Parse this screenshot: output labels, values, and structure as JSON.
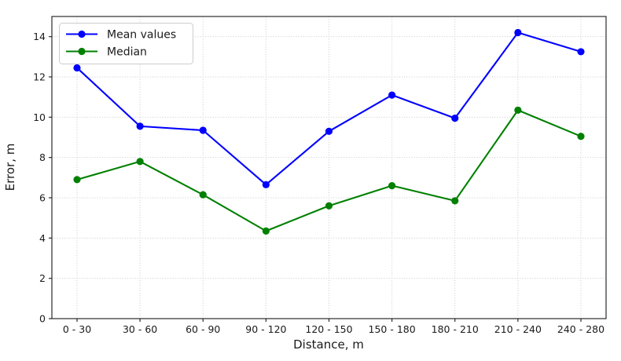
{
  "chart_data": {
    "type": "line",
    "title": "",
    "xlabel": "Distance, m",
    "ylabel": "Error, m",
    "categories": [
      "0 - 30",
      "30 - 60",
      "60 - 90",
      "90 - 120",
      "120 - 150",
      "150 - 180",
      "180 - 210",
      "210 - 240",
      "240 - 280"
    ],
    "series": [
      {
        "name": "Median",
        "color": "#008000",
        "values": [
          6.9,
          7.8,
          6.15,
          4.35,
          5.6,
          6.6,
          5.85,
          10.35,
          9.05
        ]
      },
      {
        "name": "Mean values",
        "color": "#0000ff",
        "values": [
          12.45,
          9.55,
          9.35,
          6.65,
          9.3,
          11.1,
          9.95,
          14.2,
          13.25
        ]
      }
    ],
    "ylim": [
      0,
      15
    ],
    "yticks": [
      0,
      2,
      4,
      6,
      8,
      10,
      12,
      14
    ],
    "grid": true,
    "legend_position": "upper left",
    "marker": "circle"
  },
  "colors": {
    "grid": "#c9c9c9",
    "spine": "#2b2b2b",
    "text": "#1a1a1a",
    "legend_border": "#cccccc",
    "background": "#ffffff"
  }
}
